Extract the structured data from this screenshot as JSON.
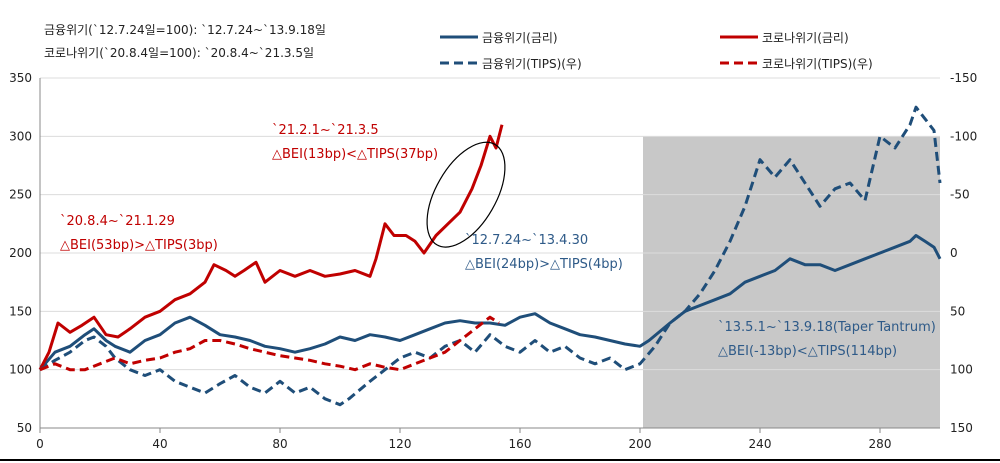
{
  "chart_data": {
    "type": "line",
    "header_notes": [
      "금융위기(`12.7.24일=100): `12.7.24~`13.9.18일",
      "코로나위기(`20.8.4일=100): `20.8.4~`21.3.5일"
    ],
    "xlim": [
      0,
      300
    ],
    "xticks": [
      0,
      40,
      80,
      120,
      160,
      200,
      240,
      280
    ],
    "ylim_left": [
      50,
      350
    ],
    "yticks_left": [
      50,
      100,
      150,
      200,
      250,
      300,
      350
    ],
    "ylim_right": [
      150,
      -150
    ],
    "yticks_right": [
      150,
      100,
      50,
      0,
      -50,
      -100,
      -150
    ],
    "right_axis_inverted": true,
    "grid": true,
    "legend_placement": "top-right",
    "shaded_region": {
      "x": [
        201,
        300
      ],
      "y_left": [
        50,
        300
      ],
      "color": "#c8c8c8"
    },
    "series": [
      {
        "name": "금융위기(금리)",
        "axis": "left",
        "style": "solid",
        "color": "#1f4e79",
        "x": [
          0,
          5,
          10,
          15,
          18,
          22,
          25,
          30,
          35,
          40,
          45,
          50,
          55,
          60,
          65,
          70,
          75,
          80,
          85,
          90,
          95,
          100,
          105,
          110,
          115,
          120,
          125,
          130,
          135,
          140,
          145,
          150,
          155,
          160,
          165,
          170,
          175,
          180,
          185,
          190,
          195,
          200,
          203,
          210,
          215,
          220,
          225,
          230,
          235,
          240,
          245,
          250,
          255,
          260,
          265,
          270,
          275,
          280,
          285,
          290,
          292,
          295,
          298,
          300
        ],
        "y": [
          100,
          115,
          120,
          130,
          135,
          125,
          120,
          115,
          125,
          130,
          140,
          145,
          138,
          130,
          128,
          125,
          120,
          118,
          115,
          118,
          122,
          128,
          125,
          130,
          128,
          125,
          130,
          135,
          140,
          142,
          140,
          140,
          138,
          145,
          148,
          140,
          135,
          130,
          128,
          125,
          122,
          120,
          125,
          140,
          150,
          155,
          160,
          165,
          175,
          180,
          185,
          195,
          190,
          190,
          185,
          190,
          195,
          200,
          205,
          210,
          215,
          210,
          205,
          195
        ]
      },
      {
        "name": "코로나위기(금리)",
        "axis": "left",
        "style": "solid",
        "color": "#c00000",
        "x": [
          0,
          3,
          6,
          10,
          14,
          18,
          22,
          26,
          30,
          35,
          40,
          45,
          50,
          55,
          58,
          62,
          65,
          68,
          72,
          75,
          80,
          85,
          90,
          95,
          100,
          105,
          110,
          112,
          115,
          118,
          122,
          125,
          128,
          132,
          136,
          140,
          144,
          147,
          150,
          152,
          154
        ],
        "y": [
          100,
          115,
          140,
          132,
          138,
          145,
          130,
          128,
          135,
          145,
          150,
          160,
          165,
          175,
          190,
          185,
          180,
          185,
          192,
          175,
          185,
          180,
          185,
          180,
          182,
          185,
          180,
          195,
          225,
          215,
          215,
          210,
          200,
          215,
          225,
          235,
          255,
          275,
          300,
          290,
          310
        ]
      },
      {
        "name": "금융위기(TIPS)(우)",
        "axis": "right",
        "style": "dashed",
        "color": "#1f4e79",
        "x": [
          0,
          5,
          10,
          15,
          18,
          22,
          25,
          30,
          35,
          40,
          45,
          50,
          55,
          60,
          65,
          70,
          75,
          80,
          85,
          90,
          95,
          100,
          103,
          110,
          115,
          120,
          125,
          130,
          135,
          140,
          145,
          150,
          155,
          160,
          165,
          170,
          175,
          180,
          185,
          190,
          195,
          200,
          205,
          210,
          215,
          220,
          225,
          230,
          235,
          240,
          245,
          250,
          255,
          260,
          265,
          270,
          275,
          280,
          285,
          290,
          292,
          295,
          298,
          300
        ],
        "y": [
          100,
          92,
          85,
          75,
          72,
          80,
          90,
          100,
          105,
          100,
          110,
          115,
          120,
          112,
          105,
          115,
          120,
          110,
          120,
          115,
          125,
          130,
          125,
          110,
          100,
          90,
          85,
          90,
          80,
          75,
          85,
          70,
          80,
          85,
          75,
          85,
          80,
          90,
          95,
          90,
          100,
          95,
          80,
          60,
          50,
          35,
          15,
          -10,
          -40,
          -80,
          -65,
          -80,
          -60,
          -40,
          -55,
          -60,
          -45,
          -100,
          -90,
          -110,
          -125,
          -115,
          -105,
          -60
        ]
      },
      {
        "name": "코로나위기(TIPS)(우)",
        "axis": "right",
        "style": "dashed",
        "color": "#c00000",
        "x": [
          0,
          5,
          10,
          15,
          20,
          25,
          30,
          35,
          40,
          45,
          50,
          55,
          60,
          65,
          70,
          75,
          80,
          85,
          90,
          95,
          100,
          105,
          110,
          115,
          120,
          125,
          130,
          135,
          140,
          145,
          150,
          153
        ],
        "y": [
          100,
          95,
          100,
          100,
          95,
          90,
          95,
          92,
          90,
          85,
          82,
          75,
          75,
          78,
          82,
          85,
          88,
          90,
          92,
          95,
          97,
          100,
          95,
          98,
          100,
          95,
          90,
          85,
          75,
          65,
          55,
          60
        ]
      }
    ],
    "annotations": [
      {
        "lines": [
          "`20.8.4~`21.1.29",
          "△BEI(53bp)>△TIPS(3bp)"
        ],
        "color": "#c00000"
      },
      {
        "lines": [
          "`21.2.1~`21.3.5",
          "△BEI(13bp)<△TIPS(37bp)"
        ],
        "color": "#c00000"
      },
      {
        "lines": [
          "`12.7.24~`13.4.30",
          "△BEI(24bp)>△TIPS(4bp)"
        ],
        "color": "#2e5a88"
      },
      {
        "lines": [
          "`13.5.1~`13.9.18(Taper Tantrum)",
          "△BEI(-13bp)<△TIPS(114bp)"
        ],
        "color": "#2e5a88"
      }
    ]
  }
}
